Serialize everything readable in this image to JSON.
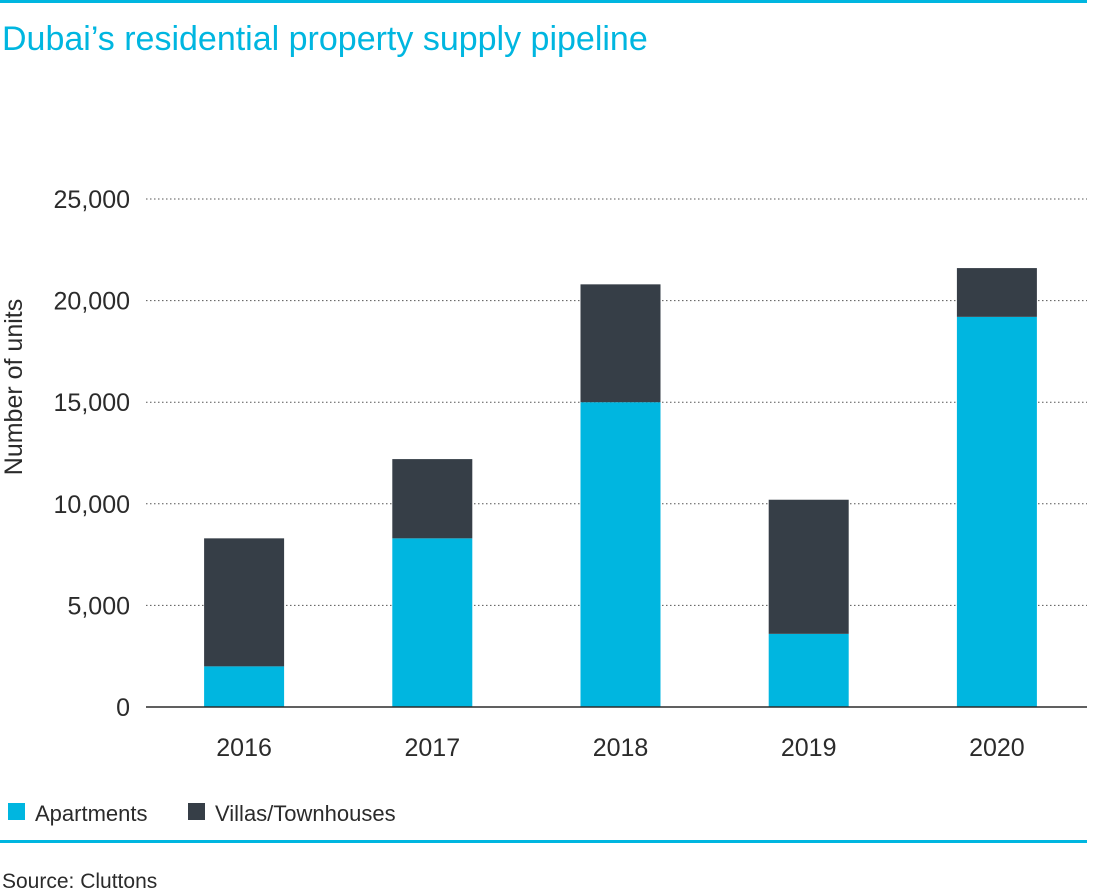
{
  "header": {
    "title": "Dubai’s residential property supply pipeline"
  },
  "footer": {
    "source": "Source: Cluttons"
  },
  "chart_data": {
    "type": "bar",
    "stacked": true,
    "title": "Dubai’s residential property supply pipeline",
    "xlabel": "",
    "ylabel": "Number of units",
    "ylim": [
      0,
      25000
    ],
    "yticks": [
      0,
      5000,
      10000,
      15000,
      20000,
      25000
    ],
    "ytick_labels": [
      "0",
      "5,000",
      "10,000",
      "15,000",
      "20,000",
      "25,000"
    ],
    "grid": "horizontal dotted",
    "legend": "bottom-left",
    "categories": [
      "2016",
      "2017",
      "2018",
      "2019",
      "2020"
    ],
    "series": [
      {
        "name": "Apartments",
        "color": "#00b6e0",
        "values": [
          2000,
          8300,
          15000,
          3600,
          19200
        ]
      },
      {
        "name": "Villas/Townhouses",
        "color": "#363e47",
        "values": [
          6300,
          3900,
          5800,
          6600,
          2400
        ]
      }
    ]
  }
}
